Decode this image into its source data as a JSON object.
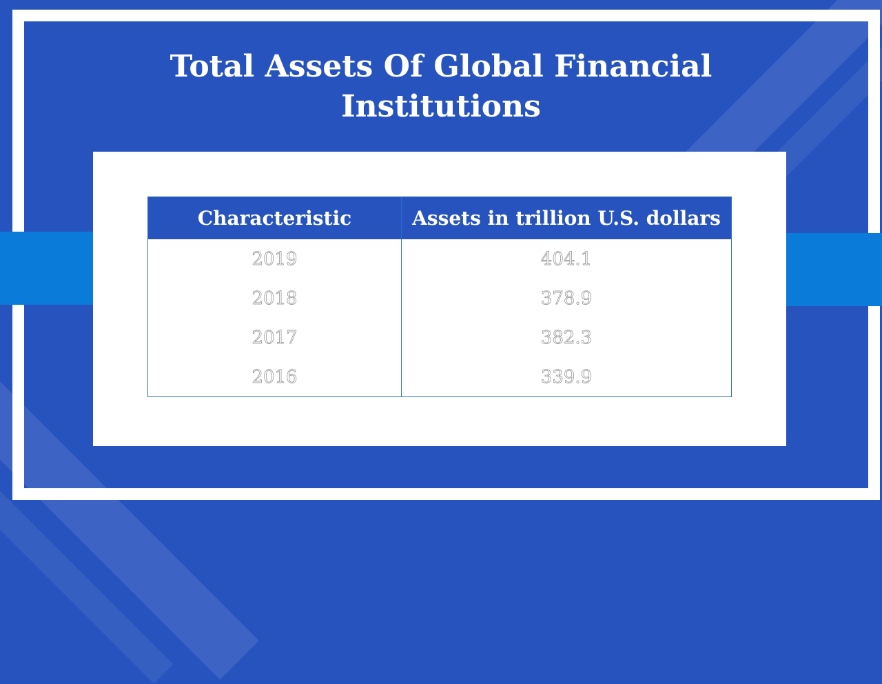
{
  "title": "Total Assets Of Global Financial Institutions",
  "table": {
    "headers": [
      "Characteristic",
      "Assets in trillion U.S. dollars"
    ],
    "rows": [
      [
        "2019",
        "404.1"
      ],
      [
        "2018",
        "378.9"
      ],
      [
        "2017",
        "382.3"
      ],
      [
        "2016",
        "339.9"
      ]
    ]
  },
  "colors": {
    "background": "#2753BE",
    "accent_band": "#0A7BD9",
    "frame": "#ffffff",
    "table_header": "#2753BE",
    "table_border": "#2E6FC9"
  }
}
